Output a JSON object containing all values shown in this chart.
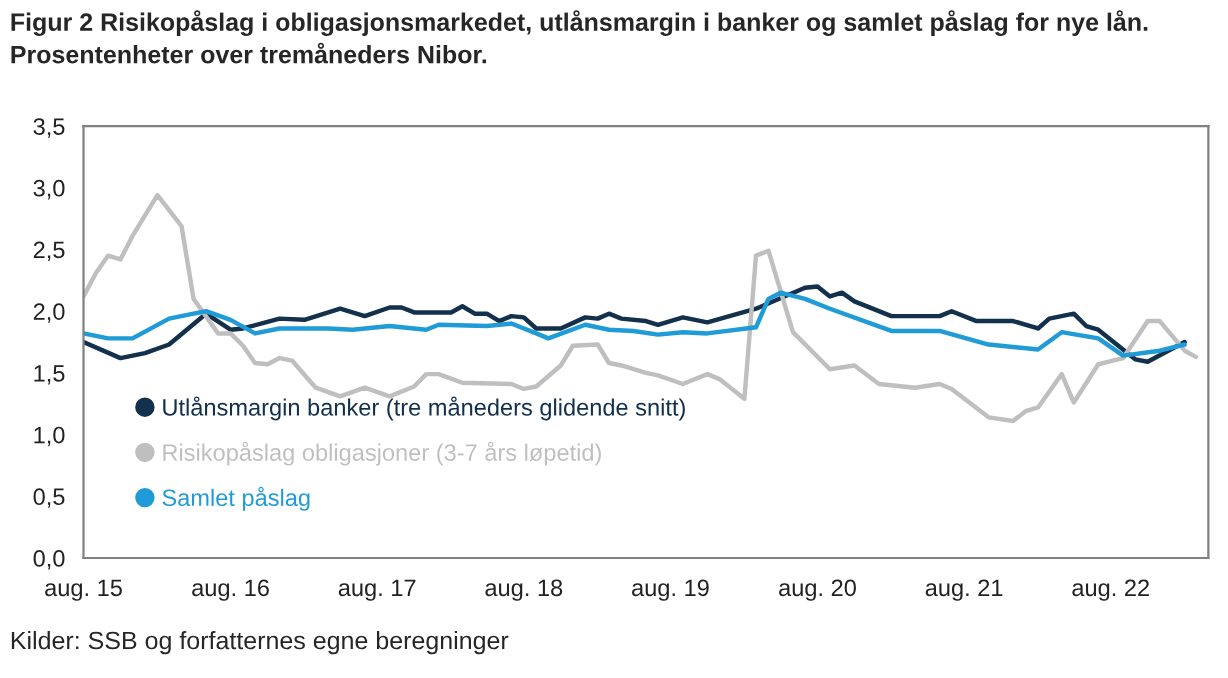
{
  "chart_data": {
    "type": "line",
    "title": "Figur 2 Risikopåslag i obligasjonsmarkedet, utlånsmargin i banker og samlet påslag for nye lån.\nProsentenheter over tremåneders Nibor.",
    "annotations": [
      "Kilder: SSB og forfatternes egne beregninger"
    ],
    "series": [
      {
        "name": "Utlånsmargin banker (tre måneders glidende snitt)",
        "color": "#13304d",
        "x": [
          "2015-08",
          "2015-11",
          "2016-01",
          "2016-03",
          "2016-06",
          "2016-08",
          "2016-09",
          "2016-12",
          "2017-02",
          "2017-05",
          "2017-07",
          "2017-09",
          "2017-10",
          "2017-11",
          "2018-02",
          "2018-03",
          "2018-04",
          "2018-05",
          "2018-06",
          "2018-07",
          "2018-08",
          "2018-09",
          "2018-11",
          "2019-01",
          "2019-02",
          "2019-03",
          "2019-04",
          "2019-06",
          "2019-07",
          "2019-09",
          "2019-11",
          "2020-03",
          "2020-07",
          "2020-08",
          "2020-09",
          "2020-10",
          "2020-11",
          "2021-02",
          "2021-06",
          "2021-07",
          "2021-09",
          "2021-12",
          "2022-02",
          "2022-03",
          "2022-05",
          "2022-06",
          "2022-07",
          "2022-10",
          "2022-11",
          "2023-02"
        ],
        "values": [
          1.75,
          1.62,
          1.66,
          1.73,
          1.98,
          1.85,
          1.86,
          1.94,
          1.93,
          2.02,
          1.96,
          2.03,
          2.03,
          1.99,
          1.99,
          2.04,
          1.98,
          1.98,
          1.92,
          1.96,
          1.95,
          1.86,
          1.86,
          1.95,
          1.94,
          1.98,
          1.94,
          1.92,
          1.89,
          1.95,
          1.91,
          2.02,
          2.19,
          2.2,
          2.12,
          2.15,
          2.08,
          1.96,
          1.96,
          2.0,
          1.92,
          1.92,
          1.86,
          1.94,
          1.98,
          1.88,
          1.85,
          1.61,
          1.59,
          1.75
        ]
      },
      {
        "name": "Risikopåslag obligasjoner (3-7 års løpetid)",
        "color": "#bfbfbf",
        "x": [
          "2015-08",
          "2015-09",
          "2015-10",
          "2015-11",
          "2015-12",
          "2016-02",
          "2016-04",
          "2016-05",
          "2016-07",
          "2016-08",
          "2016-09",
          "2016-10",
          "2016-11",
          "2016-12",
          "2017-01",
          "2017-03",
          "2017-05",
          "2017-07",
          "2017-09",
          "2017-11",
          "2017-12",
          "2018-01",
          "2018-03",
          "2018-07",
          "2018-08",
          "2018-09",
          "2018-11",
          "2018-12",
          "2019-02",
          "2019-03",
          "2019-04",
          "2019-06",
          "2019-07",
          "2019-09",
          "2019-11",
          "2019-12",
          "2020-02",
          "2020-03",
          "2020-04",
          "2020-06",
          "2020-09",
          "2020-11",
          "2021-01",
          "2021-04",
          "2021-06",
          "2021-07",
          "2021-10",
          "2021-12",
          "2022-01",
          "2022-02",
          "2022-04",
          "2022-05",
          "2022-07",
          "2022-09",
          "2022-11",
          "2022-12",
          "2023-02",
          "2023-03"
        ],
        "values": [
          2.12,
          2.31,
          2.45,
          2.42,
          2.61,
          2.94,
          2.69,
          2.1,
          1.82,
          1.82,
          1.72,
          1.58,
          1.57,
          1.62,
          1.6,
          1.38,
          1.31,
          1.38,
          1.31,
          1.39,
          1.49,
          1.49,
          1.42,
          1.41,
          1.37,
          1.39,
          1.56,
          1.72,
          1.73,
          1.58,
          1.56,
          1.5,
          1.48,
          1.41,
          1.49,
          1.45,
          1.29,
          2.45,
          2.49,
          1.83,
          1.53,
          1.56,
          1.41,
          1.38,
          1.41,
          1.37,
          1.14,
          1.11,
          1.19,
          1.22,
          1.49,
          1.26,
          1.57,
          1.62,
          1.92,
          1.92,
          1.68,
          1.63
        ]
      },
      {
        "name": "Samlet påslag",
        "color": "#1f9bd7",
        "x": [
          "2015-08",
          "2015-10",
          "2015-12",
          "2016-03",
          "2016-05",
          "2016-06",
          "2016-08",
          "2016-10",
          "2016-12",
          "2017-04",
          "2017-06",
          "2017-09",
          "2017-12",
          "2018-01",
          "2018-05",
          "2018-07",
          "2018-09",
          "2018-10",
          "2019-01",
          "2019-03",
          "2019-05",
          "2019-07",
          "2019-09",
          "2019-11",
          "2020-03",
          "2020-04",
          "2020-05",
          "2020-07",
          "2020-09",
          "2021-02",
          "2021-06",
          "2021-10",
          "2022-02",
          "2022-04",
          "2022-07",
          "2022-09",
          "2022-12",
          "2023-02"
        ],
        "values": [
          1.82,
          1.78,
          1.78,
          1.94,
          1.98,
          2.0,
          1.93,
          1.82,
          1.86,
          1.86,
          1.85,
          1.88,
          1.85,
          1.89,
          1.88,
          1.9,
          1.82,
          1.78,
          1.89,
          1.85,
          1.84,
          1.81,
          1.83,
          1.82,
          1.87,
          2.1,
          2.15,
          2.1,
          2.02,
          1.84,
          1.84,
          1.73,
          1.69,
          1.83,
          1.78,
          1.64,
          1.68,
          1.73
        ]
      }
    ],
    "xlim": [
      "2015-08",
      "2023-04"
    ],
    "xticks": [
      {
        "value": "2015-08",
        "label": "aug. 15"
      },
      {
        "value": "2016-08",
        "label": "aug. 16"
      },
      {
        "value": "2017-08",
        "label": "aug. 17"
      },
      {
        "value": "2018-08",
        "label": "aug. 18"
      },
      {
        "value": "2019-08",
        "label": "aug. 19"
      },
      {
        "value": "2020-08",
        "label": "aug. 20"
      },
      {
        "value": "2021-08",
        "label": "aug. 21"
      },
      {
        "value": "2022-08",
        "label": "aug. 22"
      }
    ],
    "ylim": [
      0,
      3.5
    ],
    "yticks": [
      {
        "value": 0,
        "label": "0,0"
      },
      {
        "value": 0.5,
        "label": "0,5"
      },
      {
        "value": 1,
        "label": "1,0"
      },
      {
        "value": 1.5,
        "label": "1,5"
      },
      {
        "value": 2,
        "label": "2,0"
      },
      {
        "value": 2.5,
        "label": "2,5"
      },
      {
        "value": 3,
        "label": "3,0"
      },
      {
        "value": 3.5,
        "label": "3,5"
      }
    ],
    "grid": false,
    "legend": "lower left",
    "marker": "none",
    "line_style": "solid"
  }
}
